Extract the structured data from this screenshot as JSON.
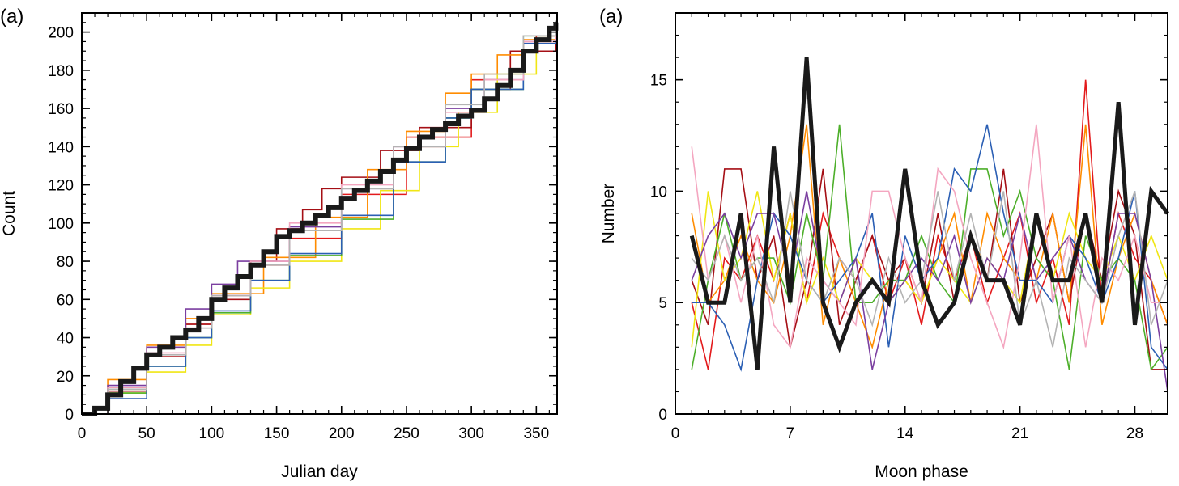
{
  "colors": {
    "black": "#1a1a1a",
    "red": "#e31a1c",
    "darkred": "#a50f15",
    "orange": "#ff8c00",
    "yellow": "#f0e614",
    "green": "#4daf2a",
    "blue": "#2b5fb4",
    "purple": "#7b3fa0",
    "pink": "#f4a6c0",
    "gray": "#b3b3b3"
  },
  "chart_data": [
    {
      "type": "line",
      "panel_label": "(a)",
      "title": "",
      "xlabel": "Julian day",
      "ylabel": "Count",
      "xlim": [
        0,
        366
      ],
      "ylim": [
        0,
        210
      ],
      "xticks": [
        0,
        50,
        100,
        150,
        200,
        250,
        300,
        350
      ],
      "yticks": [
        0,
        20,
        40,
        60,
        80,
        100,
        120,
        140,
        160,
        180,
        200
      ],
      "grid": false,
      "series": [
        {
          "color": "red",
          "x": [
            0,
            20,
            50,
            80,
            100,
            130,
            160,
            200,
            250,
            300,
            330,
            350,
            365
          ],
          "y": [
            0,
            14,
            30,
            47,
            62,
            78,
            92,
            115,
            145,
            175,
            190,
            198,
            205
          ]
        },
        {
          "color": "darkred",
          "x": [
            0,
            20,
            50,
            80,
            100,
            130,
            150,
            170,
            185,
            200,
            230,
            260,
            300,
            330,
            365
          ],
          "y": [
            0,
            12,
            30,
            47,
            60,
            80,
            97,
            107,
            118,
            124,
            138,
            150,
            170,
            190,
            205
          ]
        },
        {
          "color": "orange",
          "x": [
            0,
            20,
            50,
            80,
            100,
            140,
            180,
            220,
            250,
            280,
            300,
            320,
            340,
            365
          ],
          "y": [
            0,
            18,
            36,
            50,
            63,
            82,
            103,
            128,
            148,
            168,
            178,
            188,
            196,
            206
          ]
        },
        {
          "color": "yellow",
          "x": [
            0,
            20,
            50,
            80,
            100,
            130,
            160,
            200,
            230,
            260,
            290,
            320,
            350,
            365
          ],
          "y": [
            0,
            11,
            22,
            36,
            52,
            66,
            80,
            97,
            117,
            140,
            158,
            178,
            195,
            206
          ]
        },
        {
          "color": "green",
          "x": [
            0,
            20,
            50,
            80,
            100,
            130,
            160,
            200,
            240,
            280,
            300,
            340,
            365
          ],
          "y": [
            0,
            11,
            25,
            40,
            53,
            70,
            83,
            102,
            132,
            155,
            170,
            198,
            204
          ]
        },
        {
          "color": "blue",
          "x": [
            0,
            20,
            50,
            80,
            100,
            130,
            160,
            200,
            240,
            280,
            300,
            340,
            365
          ],
          "y": [
            0,
            8,
            25,
            40,
            54,
            70,
            84,
            104,
            132,
            155,
            170,
            194,
            205
          ]
        },
        {
          "color": "purple",
          "x": [
            0,
            20,
            50,
            80,
            100,
            120,
            160,
            200,
            240,
            280,
            310,
            340,
            365
          ],
          "y": [
            0,
            15,
            35,
            55,
            68,
            80,
            98,
            118,
            140,
            160,
            175,
            195,
            206
          ]
        },
        {
          "color": "pink",
          "x": [
            0,
            20,
            50,
            80,
            100,
            130,
            160,
            200,
            240,
            280,
            310,
            340,
            365
          ],
          "y": [
            0,
            14,
            32,
            45,
            62,
            80,
            100,
            120,
            140,
            158,
            175,
            195,
            205
          ]
        },
        {
          "color": "gray",
          "x": [
            0,
            20,
            50,
            80,
            100,
            130,
            160,
            200,
            240,
            280,
            310,
            340,
            365
          ],
          "y": [
            0,
            13,
            31,
            45,
            62,
            78,
            96,
            118,
            140,
            162,
            178,
            198,
            206
          ]
        },
        {
          "color": "black",
          "bold": true,
          "x": [
            0,
            10,
            20,
            30,
            40,
            50,
            60,
            70,
            80,
            90,
            100,
            110,
            120,
            130,
            140,
            150,
            160,
            170,
            180,
            190,
            200,
            210,
            220,
            230,
            240,
            250,
            260,
            270,
            280,
            290,
            300,
            310,
            320,
            330,
            340,
            350,
            360,
            365
          ],
          "y": [
            0,
            3,
            10,
            17,
            24,
            31,
            35,
            40,
            44,
            50,
            60,
            66,
            72,
            78,
            85,
            93,
            96,
            100,
            104,
            108,
            113,
            117,
            122,
            127,
            133,
            139,
            145,
            149,
            152,
            156,
            159,
            165,
            172,
            180,
            190,
            196,
            202,
            205
          ]
        }
      ]
    },
    {
      "type": "line",
      "panel_label": "(a)",
      "title": "",
      "xlabel": "Moon phase",
      "ylabel": "Number",
      "xlim": [
        0,
        30
      ],
      "ylim": [
        0,
        18
      ],
      "xticks": [
        0,
        7,
        14,
        21,
        28
      ],
      "yticks": [
        0,
        5,
        10,
        15
      ],
      "grid": false,
      "series": [
        {
          "color": "red",
          "x": [
            1,
            2,
            3,
            4,
            5,
            6,
            7,
            8,
            9,
            10,
            11,
            12,
            13,
            14,
            15,
            16,
            17,
            18,
            19,
            20,
            21,
            22,
            23,
            24,
            25,
            26,
            27,
            28,
            29,
            30
          ],
          "y": [
            5,
            2,
            7,
            6,
            8,
            6,
            9,
            5,
            9,
            7,
            6,
            8,
            5,
            7,
            4,
            8,
            6,
            8,
            5,
            7,
            9,
            5,
            7,
            4,
            15,
            5,
            9,
            7,
            6,
            4
          ]
        },
        {
          "color": "darkred",
          "x": [
            1,
            2,
            3,
            4,
            5,
            6,
            7,
            8,
            9,
            10,
            11,
            12,
            13,
            14,
            15,
            16,
            17,
            18,
            19,
            20,
            21,
            22,
            23,
            24,
            25,
            26,
            27,
            28,
            29,
            30
          ],
          "y": [
            6,
            4,
            11,
            11,
            6,
            8,
            3,
            6,
            11,
            4,
            6,
            8,
            6,
            7,
            5,
            9,
            5,
            8,
            6,
            11,
            5,
            7,
            9,
            5,
            9,
            6,
            10,
            8,
            2,
            2
          ]
        },
        {
          "color": "orange",
          "x": [
            1,
            2,
            3,
            4,
            5,
            6,
            7,
            8,
            9,
            10,
            11,
            12,
            13,
            14,
            15,
            16,
            17,
            18,
            19,
            20,
            21,
            22,
            23,
            24,
            25,
            26,
            27,
            28,
            29,
            30
          ],
          "y": [
            9,
            5,
            6,
            8,
            6,
            5,
            8,
            13,
            4,
            7,
            5,
            3,
            6,
            6,
            5,
            7,
            9,
            5,
            9,
            7,
            6,
            6,
            9,
            5,
            13,
            4,
            7,
            9,
            6,
            4
          ]
        },
        {
          "color": "yellow",
          "x": [
            1,
            2,
            3,
            4,
            5,
            6,
            7,
            8,
            9,
            10,
            11,
            12,
            13,
            14,
            15,
            16,
            17,
            18,
            19,
            20,
            21,
            22,
            23,
            24,
            25,
            26,
            27,
            28,
            29,
            30
          ],
          "y": [
            3,
            10,
            6,
            7,
            10,
            6,
            9,
            5,
            7,
            5,
            7,
            6,
            5,
            6,
            5,
            7,
            6,
            5,
            7,
            6,
            5,
            9,
            6,
            9,
            7,
            6,
            8,
            6,
            8,
            6
          ]
        },
        {
          "color": "green",
          "x": [
            1,
            2,
            3,
            4,
            5,
            6,
            7,
            8,
            9,
            10,
            11,
            12,
            13,
            14,
            15,
            16,
            17,
            18,
            19,
            20,
            21,
            22,
            23,
            24,
            25,
            26,
            27,
            28,
            29,
            30
          ],
          "y": [
            2,
            6,
            9,
            6,
            7,
            7,
            5,
            9,
            6,
            13,
            5,
            5,
            6,
            6,
            8,
            6,
            5,
            11,
            11,
            8,
            10,
            7,
            6,
            2,
            8,
            6,
            7,
            6,
            2,
            3
          ]
        },
        {
          "color": "blue",
          "x": [
            1,
            2,
            3,
            4,
            5,
            6,
            7,
            8,
            9,
            10,
            11,
            12,
            13,
            14,
            15,
            16,
            17,
            18,
            19,
            20,
            21,
            22,
            23,
            24,
            25,
            26,
            27,
            28,
            29,
            30
          ],
          "y": [
            5,
            5,
            4,
            2,
            6,
            9,
            8,
            6,
            5,
            6,
            7,
            9,
            3,
            8,
            6,
            7,
            11,
            10,
            13,
            9,
            6,
            6,
            5,
            8,
            7,
            5,
            7,
            10,
            3,
            2
          ]
        },
        {
          "color": "purple",
          "x": [
            1,
            2,
            3,
            4,
            5,
            6,
            7,
            8,
            9,
            10,
            11,
            12,
            13,
            14,
            15,
            16,
            17,
            18,
            19,
            20,
            21,
            22,
            23,
            24,
            25,
            26,
            27,
            28,
            29,
            30
          ],
          "y": [
            6,
            8,
            9,
            7,
            9,
            9,
            6,
            10,
            6,
            5,
            7,
            2,
            5,
            6,
            7,
            6,
            8,
            5,
            7,
            6,
            9,
            6,
            7,
            8,
            6,
            5,
            9,
            9,
            6,
            1
          ]
        },
        {
          "color": "pink",
          "x": [
            1,
            2,
            3,
            4,
            5,
            6,
            7,
            8,
            9,
            10,
            11,
            12,
            13,
            14,
            15,
            16,
            17,
            18,
            19,
            20,
            21,
            22,
            23,
            24,
            25,
            26,
            27,
            28,
            29,
            30
          ],
          "y": [
            12,
            6,
            8,
            5,
            8,
            4,
            3,
            7,
            6,
            5,
            4,
            10,
            10,
            7,
            5,
            11,
            10,
            7,
            5,
            3,
            7,
            13,
            5,
            8,
            3,
            7,
            6,
            8,
            5,
            5
          ]
        },
        {
          "color": "gray",
          "x": [
            1,
            2,
            3,
            4,
            5,
            6,
            7,
            8,
            9,
            10,
            11,
            12,
            13,
            14,
            15,
            16,
            17,
            18,
            19,
            20,
            21,
            22,
            23,
            24,
            25,
            26,
            27,
            28,
            29,
            30
          ],
          "y": [
            7,
            6,
            8,
            6,
            7,
            5,
            10,
            6,
            5,
            7,
            6,
            4,
            7,
            5,
            6,
            10,
            6,
            9,
            6,
            10,
            4,
            6,
            3,
            7,
            6,
            5,
            8,
            10,
            4,
            6
          ]
        },
        {
          "color": "black",
          "bold": true,
          "x": [
            1,
            2,
            3,
            4,
            5,
            6,
            7,
            8,
            9,
            10,
            11,
            12,
            13,
            14,
            15,
            16,
            17,
            18,
            19,
            20,
            21,
            22,
            23,
            24,
            25,
            26,
            27,
            28,
            29,
            30
          ],
          "y": [
            8,
            5,
            5,
            9,
            2,
            12,
            5,
            16,
            5,
            3,
            5,
            6,
            5,
            11,
            6,
            4,
            5,
            8,
            6,
            6,
            4,
            9,
            6,
            6,
            9,
            5,
            14,
            4,
            10,
            9
          ]
        }
      ]
    }
  ]
}
